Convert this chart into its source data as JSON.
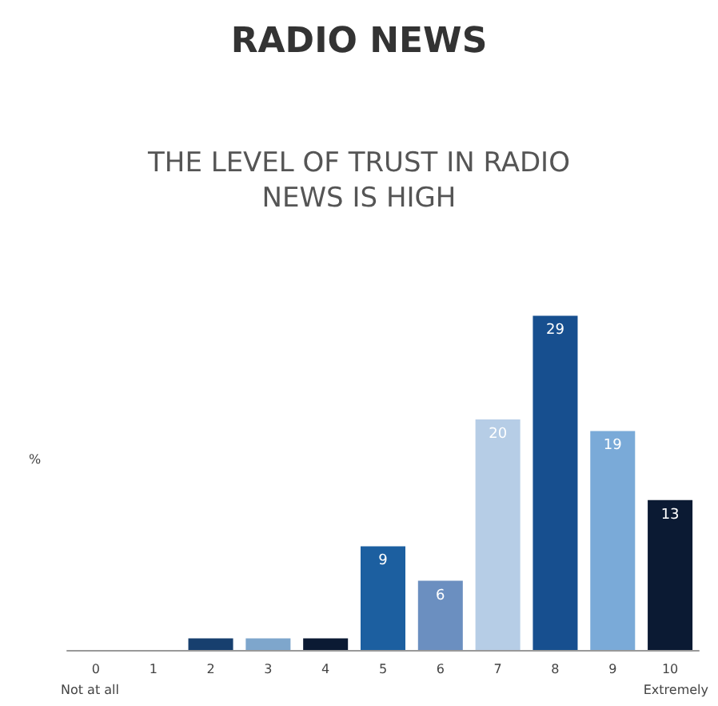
{
  "chart_data": {
    "type": "bar",
    "title": "RADIO NEWS",
    "subtitle": "THE LEVEL OF TRUST IN RADIO\nNEWS IS HIGH",
    "ylabel": "%",
    "categories": [
      "0",
      "1",
      "2",
      "3",
      "4",
      "5",
      "6",
      "7",
      "8",
      "9",
      "10"
    ],
    "values": [
      0,
      0,
      1,
      1,
      1,
      9,
      6,
      20,
      29,
      19,
      13
    ],
    "value_labels": [
      null,
      null,
      null,
      null,
      null,
      "9",
      "6",
      "20",
      "29",
      "19",
      "13"
    ],
    "colors": [
      "#173f6e",
      "#173f6e",
      "#173f6e",
      "#7ea6cc",
      "#0b1a33",
      "#1c5fa0",
      "#6b8fc0",
      "#b6cde6",
      "#174f8f",
      "#7aaad8",
      "#0b1a33"
    ],
    "annotations": [
      "Not at all",
      "Extremely"
    ],
    "grid": false
  }
}
